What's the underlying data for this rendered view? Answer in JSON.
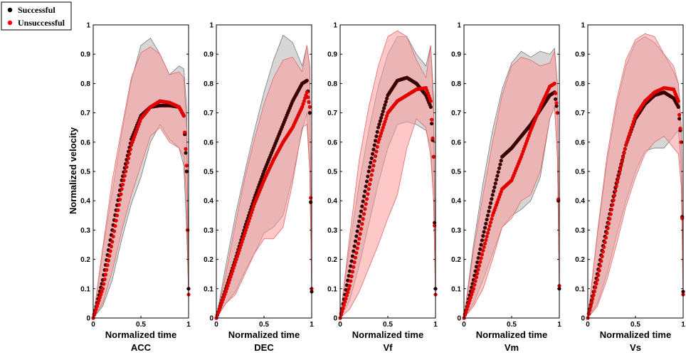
{
  "chart_data": {
    "type": "line",
    "ylabel": "Normalized velocity",
    "xlabel": "Normalized time",
    "xlim": [
      0,
      1
    ],
    "ylim": [
      0,
      1
    ],
    "x_ticks": [
      "0",
      "0.5",
      "1"
    ],
    "y_ticks": [
      "0",
      "0.1",
      "0.2",
      "0.3",
      "0.4",
      "0.5",
      "0.6",
      "0.7",
      "0.8",
      "0.9",
      "1"
    ],
    "legend": {
      "position": "top-left",
      "entries": [
        {
          "name": "Successful",
          "color": "#000000"
        },
        {
          "name": "Unsuccessful",
          "color": "#ff0000"
        }
      ]
    },
    "colors": {
      "successful_line": "#3a0000",
      "unsuccessful_line": "#e00000",
      "successful_band": "#c8c8c8",
      "unsuccessful_band": "#ff9a9a",
      "overlap_band": "#c08a8a"
    },
    "panels": [
      {
        "title": "ACC",
        "x": [
          0,
          0.1,
          0.2,
          0.3,
          0.4,
          0.5,
          0.6,
          0.7,
          0.8,
          0.9,
          0.95,
          0.98,
          1
        ],
        "series": [
          {
            "name": "Successful",
            "values": [
              0,
              0.13,
              0.3,
              0.47,
              0.61,
              0.69,
              0.72,
              0.725,
              0.725,
              0.72,
              0.69,
              0.5,
              0.1
            ],
            "upper": [
              0,
              0.23,
              0.43,
              0.63,
              0.81,
              0.93,
              0.955,
              0.9,
              0.83,
              0.86,
              0.85,
              0.72,
              0.12
            ],
            "lower": [
              0,
              0.04,
              0.13,
              0.27,
              0.39,
              0.48,
              0.6,
              0.66,
              0.61,
              0.58,
              0.52,
              0.3,
              0.08
            ]
          },
          {
            "name": "Unsuccessful",
            "values": [
              0,
              0.1,
              0.26,
              0.44,
              0.59,
              0.68,
              0.72,
              0.74,
              0.735,
              0.72,
              0.69,
              0.52,
              0.08
            ],
            "upper": [
              0,
              0.24,
              0.47,
              0.65,
              0.82,
              0.905,
              0.925,
              0.9,
              0.83,
              0.84,
              0.82,
              0.65,
              0.1
            ],
            "lower": [
              0,
              0.05,
              0.16,
              0.3,
              0.42,
              0.52,
              0.62,
              0.65,
              0.6,
              0.58,
              0.55,
              0.4,
              0.06
            ]
          }
        ]
      },
      {
        "title": "DEC",
        "x": [
          0,
          0.1,
          0.2,
          0.3,
          0.4,
          0.5,
          0.6,
          0.7,
          0.8,
          0.9,
          0.95,
          0.98,
          1
        ],
        "series": [
          {
            "name": "Successful",
            "values": [
              0,
              0.1,
              0.2,
              0.31,
              0.41,
              0.5,
              0.58,
              0.66,
              0.74,
              0.8,
              0.81,
              0.7,
              0.09
            ],
            "upper": [
              0,
              0.18,
              0.35,
              0.5,
              0.64,
              0.77,
              0.88,
              0.965,
              0.94,
              0.86,
              0.93,
              0.85,
              0.1
            ],
            "lower": [
              0,
              0.05,
              0.09,
              0.16,
              0.22,
              0.29,
              0.31,
              0.35,
              0.48,
              0.64,
              0.7,
              0.5,
              0.08
            ]
          },
          {
            "name": "Unsuccessful",
            "values": [
              0,
              0.09,
              0.19,
              0.29,
              0.39,
              0.47,
              0.54,
              0.6,
              0.65,
              0.72,
              0.77,
              0.72,
              0.1
            ],
            "upper": [
              0,
              0.15,
              0.32,
              0.48,
              0.61,
              0.73,
              0.82,
              0.88,
              0.89,
              0.84,
              0.93,
              0.86,
              0.11
            ],
            "lower": [
              0,
              0.05,
              0.08,
              0.15,
              0.22,
              0.27,
              0.27,
              0.31,
              0.46,
              0.65,
              0.66,
              0.5,
              0.09
            ]
          }
        ]
      },
      {
        "title": "Vf",
        "x": [
          0,
          0.1,
          0.2,
          0.3,
          0.4,
          0.5,
          0.6,
          0.7,
          0.8,
          0.9,
          0.95,
          0.98,
          1
        ],
        "series": [
          {
            "name": "Successful",
            "values": [
              0,
              0.16,
              0.33,
              0.5,
              0.65,
              0.76,
              0.81,
              0.82,
              0.8,
              0.76,
              0.72,
              0.55,
              0.1
            ],
            "upper": [
              0,
              0.25,
              0.46,
              0.64,
              0.79,
              0.9,
              0.96,
              0.96,
              0.9,
              0.86,
              0.93,
              0.75,
              0.12
            ],
            "lower": [
              0,
              0.06,
              0.18,
              0.32,
              0.46,
              0.58,
              0.66,
              0.67,
              0.66,
              0.64,
              0.58,
              0.4,
              0.08
            ]
          },
          {
            "name": "Unsuccessful",
            "values": [
              0,
              0.11,
              0.27,
              0.44,
              0.6,
              0.7,
              0.74,
              0.76,
              0.78,
              0.785,
              0.74,
              0.55,
              0.08
            ],
            "upper": [
              0,
              0.28,
              0.54,
              0.72,
              0.86,
              0.96,
              0.98,
              0.96,
              0.88,
              0.82,
              0.93,
              0.7,
              0.1
            ],
            "lower": [
              0,
              0.03,
              0.09,
              0.17,
              0.25,
              0.34,
              0.42,
              0.58,
              0.68,
              0.65,
              0.55,
              0.4,
              0.06
            ]
          }
        ]
      },
      {
        "title": "Vm",
        "x": [
          0,
          0.1,
          0.2,
          0.3,
          0.4,
          0.5,
          0.6,
          0.7,
          0.8,
          0.9,
          0.95,
          0.98,
          1
        ],
        "series": [
          {
            "name": "Successful",
            "values": [
              0,
              0.13,
              0.28,
              0.42,
              0.55,
              0.58,
              0.62,
              0.66,
              0.71,
              0.76,
              0.77,
              0.7,
              0.1
            ],
            "upper": [
              0,
              0.25,
              0.46,
              0.64,
              0.78,
              0.87,
              0.91,
              0.89,
              0.91,
              0.9,
              0.92,
              0.8,
              0.12
            ],
            "lower": [
              0,
              0.05,
              0.13,
              0.22,
              0.31,
              0.35,
              0.37,
              0.4,
              0.48,
              0.68,
              0.72,
              0.55,
              0.08
            ]
          },
          {
            "name": "Unsuccessful",
            "values": [
              0,
              0.1,
              0.23,
              0.35,
              0.44,
              0.47,
              0.55,
              0.64,
              0.72,
              0.79,
              0.8,
              0.7,
              0.11
            ],
            "upper": [
              0,
              0.23,
              0.42,
              0.6,
              0.76,
              0.86,
              0.89,
              0.88,
              0.86,
              0.87,
              0.91,
              0.8,
              0.12
            ],
            "lower": [
              0,
              0.04,
              0.1,
              0.2,
              0.31,
              0.34,
              0.4,
              0.42,
              0.5,
              0.68,
              0.72,
              0.55,
              0.09
            ]
          }
        ]
      },
      {
        "title": "Vs",
        "x": [
          0,
          0.1,
          0.2,
          0.3,
          0.4,
          0.5,
          0.6,
          0.7,
          0.8,
          0.9,
          0.95,
          0.98,
          1
        ],
        "series": [
          {
            "name": "Successful",
            "values": [
              0,
              0.15,
              0.31,
              0.46,
              0.59,
              0.68,
              0.73,
              0.76,
              0.77,
              0.75,
              0.72,
              0.6,
              0.09
            ],
            "upper": [
              0,
              0.28,
              0.53,
              0.72,
              0.86,
              0.94,
              0.96,
              0.94,
              0.9,
              0.84,
              0.8,
              0.65,
              0.1
            ],
            "lower": [
              0,
              0.05,
              0.15,
              0.28,
              0.4,
              0.5,
              0.57,
              0.58,
              0.58,
              0.62,
              0.64,
              0.5,
              0.08
            ]
          },
          {
            "name": "Unsuccessful",
            "values": [
              0,
              0.13,
              0.29,
              0.45,
              0.59,
              0.69,
              0.74,
              0.77,
              0.785,
              0.78,
              0.74,
              0.6,
              0.08
            ],
            "upper": [
              0,
              0.29,
              0.55,
              0.74,
              0.88,
              0.95,
              0.97,
              0.96,
              0.9,
              0.86,
              0.8,
              0.66,
              0.1
            ],
            "lower": [
              0,
              0.04,
              0.13,
              0.25,
              0.38,
              0.48,
              0.56,
              0.6,
              0.62,
              0.58,
              0.56,
              0.45,
              0.06
            ]
          }
        ]
      }
    ]
  }
}
